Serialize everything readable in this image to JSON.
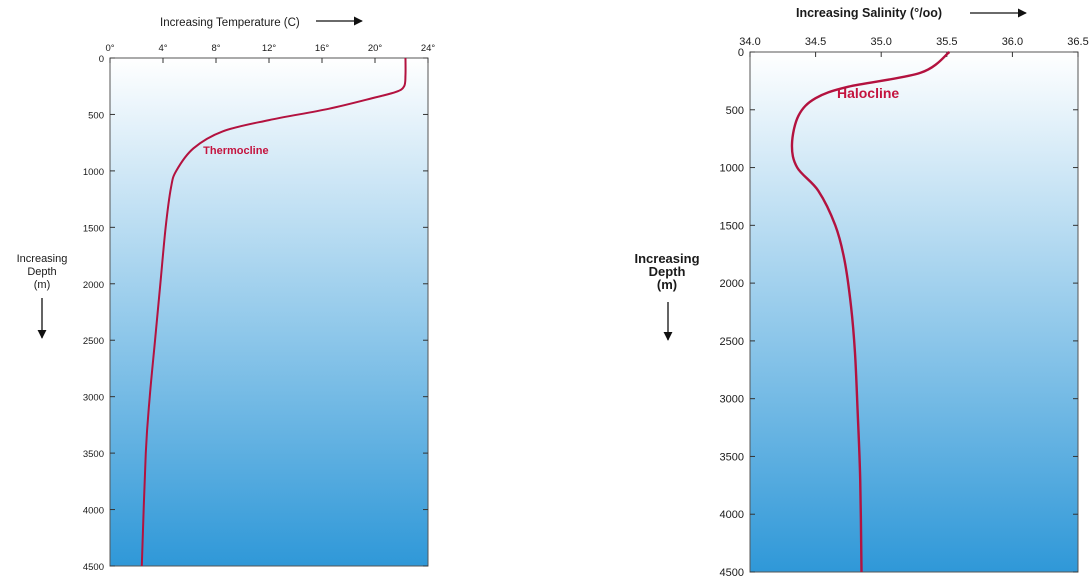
{
  "colors": {
    "curve": "#b3123f",
    "annotation": "#c4143f",
    "gradient_top": "#ffffff",
    "gradient_bottom": "#2f98d8",
    "frame": "#555555"
  },
  "chart_data": [
    {
      "type": "line",
      "title": "",
      "xlabel": "Increasing Temperature (C)",
      "ylabel": "Increasing Depth (m)",
      "ylabel_lines": [
        "Increasing",
        "Depth",
        "(m)"
      ],
      "x_axis_position": "top",
      "x_tick_labels": [
        "0°",
        "4°",
        "8°",
        "12°",
        "16°",
        "20°",
        "24°"
      ],
      "x_ticks": [
        0,
        4,
        8,
        12,
        16,
        20,
        24
      ],
      "y_tick_labels": [
        "0",
        "500",
        "1000",
        "1500",
        "2000",
        "2500",
        "3000",
        "3500",
        "4000",
        "4500"
      ],
      "y_ticks": [
        0,
        500,
        1000,
        1500,
        2000,
        2500,
        3000,
        3500,
        4000,
        4500
      ],
      "xlim": [
        0,
        24
      ],
      "ylim": [
        0,
        4500
      ],
      "y_inverted": true,
      "grid": false,
      "annotations": [
        {
          "text": "Thermocline",
          "x": 9.5,
          "y": 850
        }
      ],
      "series": [
        {
          "x": [
            22.3,
            22.3,
            22.2,
            21.6,
            20.0,
            16.5,
            12.0,
            8.5,
            6.3,
            5.0,
            4.6,
            4.2,
            3.8,
            3.4,
            3.0,
            2.7,
            2.4
          ],
          "y": [
            0,
            150,
            250,
            300,
            350,
            450,
            550,
            650,
            800,
            1000,
            1150,
            1500,
            2000,
            2500,
            3000,
            3500,
            4500
          ]
        }
      ]
    },
    {
      "type": "line",
      "title": "",
      "xlabel": "Increasing Salinity (°/oo)",
      "ylabel": "Increasing Depth (m)",
      "ylabel_lines": [
        "Increasing",
        "Depth",
        "(m)"
      ],
      "x_axis_position": "top",
      "x_tick_labels": [
        "34.0",
        "34.5",
        "35.0",
        "35.5",
        "36.0",
        "36.5"
      ],
      "x_ticks": [
        34.0,
        34.5,
        35.0,
        35.5,
        36.0,
        36.5
      ],
      "y_tick_labels": [
        "0",
        "500",
        "1000",
        "1500",
        "2000",
        "2500",
        "3000",
        "3500",
        "4000",
        "4500"
      ],
      "y_ticks": [
        0,
        500,
        1000,
        1500,
        2000,
        2500,
        3000,
        3500,
        4000,
        4500
      ],
      "xlim": [
        34.0,
        36.5
      ],
      "ylim": [
        0,
        4500
      ],
      "y_inverted": true,
      "grid": false,
      "annotations": [
        {
          "text": "Halocline",
          "x": 34.9,
          "y": 400
        }
      ],
      "series": [
        {
          "x": [
            35.52,
            35.3,
            34.75,
            34.5,
            34.37,
            34.32,
            34.36,
            34.52,
            34.65,
            34.72,
            34.77,
            34.8,
            34.82,
            34.84,
            34.85
          ],
          "y": [
            0,
            180,
            300,
            400,
            550,
            800,
            1000,
            1200,
            1500,
            1800,
            2200,
            2600,
            3100,
            3700,
            4500
          ]
        }
      ]
    }
  ]
}
